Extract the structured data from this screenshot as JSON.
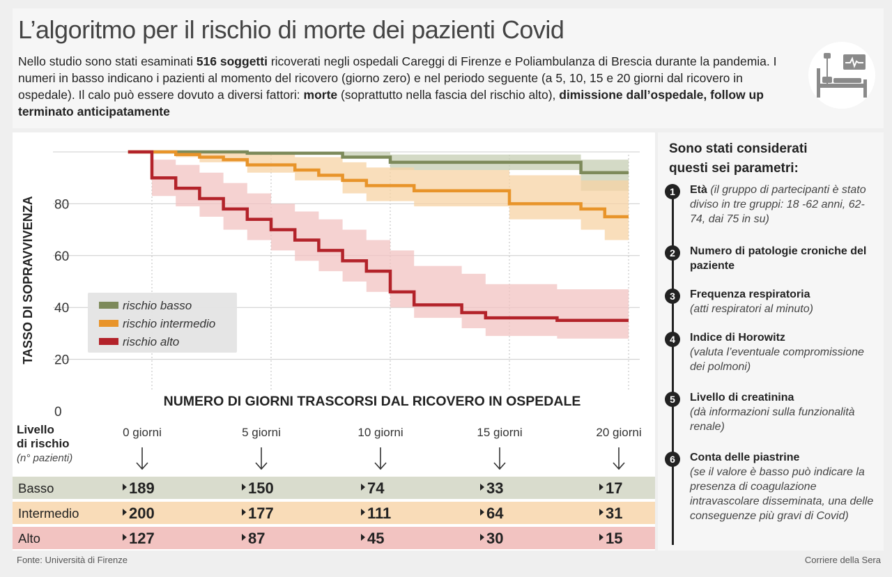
{
  "header": {
    "title": "L’algoritmo per il rischio di morte dei pazienti Covid",
    "intro_parts": [
      {
        "text": "Nello studio sono stati esaminati ",
        "bold": false
      },
      {
        "text": "516 soggetti",
        "bold": true
      },
      {
        "text": " ricoverati negli ospedali Careggi di Firenze e Poliambulanza di Brescia durante la pandemia. I numeri in basso indicano i pazienti al momento del ricovero (giorno zero) e nel periodo seguente (a 5, 10, 15 e 20 giorni dal ricovero in ospedale). Il calo può essere dovuto a diversi fattori: ",
        "bold": false
      },
      {
        "text": "morte",
        "bold": true
      },
      {
        "text": " (soprattutto nella fascia del rischio alto), ",
        "bold": false
      },
      {
        "text": "dimissione dall’ospedale, follow up terminato anticipatamente",
        "bold": true
      }
    ],
    "icon": "hospital-bed-icon"
  },
  "chart_data": {
    "type": "line",
    "ylabel": "TASSO DI SOPRAVVIVENZA",
    "xlabel": "NUMERO DI GIORNI TRASCORSI DAL RICOVERO IN OSPEDALE",
    "ylim": [
      0,
      100
    ],
    "xlim": [
      0,
      20
    ],
    "yticks": [
      0,
      20,
      40,
      60,
      80
    ],
    "xticks": [
      0,
      5,
      10,
      15,
      20
    ],
    "xtick_labels": [
      "0 giorni",
      "5 giorni",
      "10 giorni",
      "15 giorni",
      "20 giorni"
    ],
    "legend_position": "left-middle",
    "series": [
      {
        "name": "rischio basso",
        "color": "#7d8a5a",
        "band_color": "#c5cdb3",
        "steps": [
          [
            -1,
            100
          ],
          [
            4,
            100
          ],
          [
            4,
            99.5
          ],
          [
            8,
            99.5
          ],
          [
            8,
            98
          ],
          [
            10,
            98
          ],
          [
            10,
            96
          ],
          [
            18,
            96
          ],
          [
            18,
            92
          ],
          [
            20,
            92
          ]
        ],
        "ci_upper": [
          [
            -1,
            100
          ],
          [
            4,
            100
          ],
          [
            8,
            100
          ],
          [
            10,
            99
          ],
          [
            18,
            99
          ],
          [
            18,
            97
          ],
          [
            20,
            97
          ]
        ],
        "ci_lower": [
          [
            -1,
            100
          ],
          [
            4,
            99
          ],
          [
            8,
            98
          ],
          [
            10,
            95
          ],
          [
            10,
            93
          ],
          [
            18,
            93
          ],
          [
            18,
            85
          ],
          [
            20,
            85
          ]
        ]
      },
      {
        "name": "rischio intermedio",
        "color": "#e8942a",
        "band_color": "#f7d3a4",
        "steps": [
          [
            -1,
            100
          ],
          [
            1,
            100
          ],
          [
            1,
            99
          ],
          [
            2,
            99
          ],
          [
            2,
            98
          ],
          [
            3,
            98
          ],
          [
            3,
            97
          ],
          [
            4,
            97
          ],
          [
            4,
            95
          ],
          [
            6,
            95
          ],
          [
            6,
            93
          ],
          [
            7,
            93
          ],
          [
            7,
            91
          ],
          [
            8,
            91
          ],
          [
            8,
            89
          ],
          [
            9,
            89
          ],
          [
            9,
            87
          ],
          [
            11,
            87
          ],
          [
            11,
            85
          ],
          [
            15,
            85
          ],
          [
            15,
            80
          ],
          [
            18,
            80
          ],
          [
            18,
            78
          ],
          [
            19,
            78
          ],
          [
            19,
            75
          ],
          [
            20,
            75
          ]
        ],
        "ci_upper": [
          [
            -1,
            100
          ],
          [
            1,
            100
          ],
          [
            4,
            99
          ],
          [
            6,
            98
          ],
          [
            8,
            96
          ],
          [
            9,
            94
          ],
          [
            11,
            93
          ],
          [
            15,
            91
          ],
          [
            18,
            89
          ],
          [
            20,
            86
          ]
        ],
        "ci_lower": [
          [
            -1,
            100
          ],
          [
            1,
            98
          ],
          [
            2,
            96
          ],
          [
            4,
            92
          ],
          [
            6,
            89
          ],
          [
            8,
            84
          ],
          [
            9,
            81
          ],
          [
            11,
            79
          ],
          [
            15,
            74
          ],
          [
            18,
            70
          ],
          [
            19,
            66
          ],
          [
            20,
            66
          ]
        ]
      },
      {
        "name": "rischio alto",
        "color": "#b3232a",
        "band_color": "#f2c3c1",
        "steps": [
          [
            -1,
            100
          ],
          [
            0,
            100
          ],
          [
            0,
            90
          ],
          [
            1,
            90
          ],
          [
            1,
            86
          ],
          [
            2,
            86
          ],
          [
            2,
            82
          ],
          [
            3,
            82
          ],
          [
            3,
            78
          ],
          [
            4,
            78
          ],
          [
            4,
            74
          ],
          [
            5,
            74
          ],
          [
            5,
            70
          ],
          [
            6,
            70
          ],
          [
            6,
            66
          ],
          [
            7,
            66
          ],
          [
            7,
            62
          ],
          [
            8,
            62
          ],
          [
            8,
            58
          ],
          [
            9,
            58
          ],
          [
            9,
            54
          ],
          [
            10,
            54
          ],
          [
            10,
            46
          ],
          [
            11,
            46
          ],
          [
            11,
            41
          ],
          [
            13,
            41
          ],
          [
            13,
            38
          ],
          [
            14,
            38
          ],
          [
            14,
            36
          ],
          [
            17,
            36
          ],
          [
            17,
            35
          ],
          [
            20,
            35
          ]
        ],
        "ci_upper": [
          [
            -1,
            100
          ],
          [
            0,
            97
          ],
          [
            1,
            95
          ],
          [
            2,
            92
          ],
          [
            3,
            88
          ],
          [
            4,
            84
          ],
          [
            5,
            80
          ],
          [
            6,
            77
          ],
          [
            7,
            74
          ],
          [
            8,
            70
          ],
          [
            9,
            66
          ],
          [
            10,
            62
          ],
          [
            11,
            56
          ],
          [
            13,
            53
          ],
          [
            14,
            49
          ],
          [
            17,
            47
          ],
          [
            20,
            46
          ]
        ],
        "ci_lower": [
          [
            -1,
            100
          ],
          [
            0,
            83
          ],
          [
            1,
            79
          ],
          [
            2,
            75
          ],
          [
            3,
            70
          ],
          [
            4,
            66
          ],
          [
            5,
            62
          ],
          [
            6,
            58
          ],
          [
            7,
            54
          ],
          [
            8,
            50
          ],
          [
            9,
            46
          ],
          [
            10,
            40
          ],
          [
            11,
            36
          ],
          [
            13,
            32
          ],
          [
            14,
            29
          ],
          [
            17,
            28
          ],
          [
            20,
            27
          ]
        ]
      }
    ]
  },
  "risk_table": {
    "header_line1": "Livello",
    "header_line2": "di rischio",
    "header_sub": "(n° pazienti)",
    "rows": [
      {
        "label": "Basso",
        "bg": "#d9dccd",
        "values": [
          "189",
          "150",
          "74",
          "33",
          "17"
        ]
      },
      {
        "label": "Intermedio",
        "bg": "#f9dcb8",
        "values": [
          "200",
          "177",
          "111",
          "64",
          "31"
        ]
      },
      {
        "label": "Alto",
        "bg": "#f2c3c1",
        "values": [
          "127",
          "87",
          "45",
          "30",
          "15"
        ]
      }
    ]
  },
  "params": {
    "title_line1": "Sono stati considerati",
    "title_line2": "questi sei parametri:",
    "items": [
      {
        "num": "1",
        "name": "Età",
        "desc": " (il gruppo di partecipanti è stato diviso in tre gruppi: 18 -62 anni, 62-74, dai 75 in su)"
      },
      {
        "num": "2",
        "name": "Numero di patologie croniche del paziente",
        "desc": ""
      },
      {
        "num": "3",
        "name": "Frequenza respiratoria",
        "desc": "(atti respiratori al minuto)"
      },
      {
        "num": "4",
        "name": "Indice di Horowitz",
        "desc": "(valuta l’eventuale compromissione dei polmoni)"
      },
      {
        "num": "5",
        "name": "Livello di creatinina",
        "desc": "(dà informazioni sulla funzionalità renale)"
      },
      {
        "num": "6",
        "name": "Conta delle piastrine",
        "desc": "(se il valore è basso può indicare la presenza di coagulazione intravascolare disseminata, una delle conseguenze più gravi di Covid)"
      }
    ]
  },
  "footer": {
    "source": "Fonte: Università di Firenze",
    "credit": "Corriere della Sera"
  }
}
